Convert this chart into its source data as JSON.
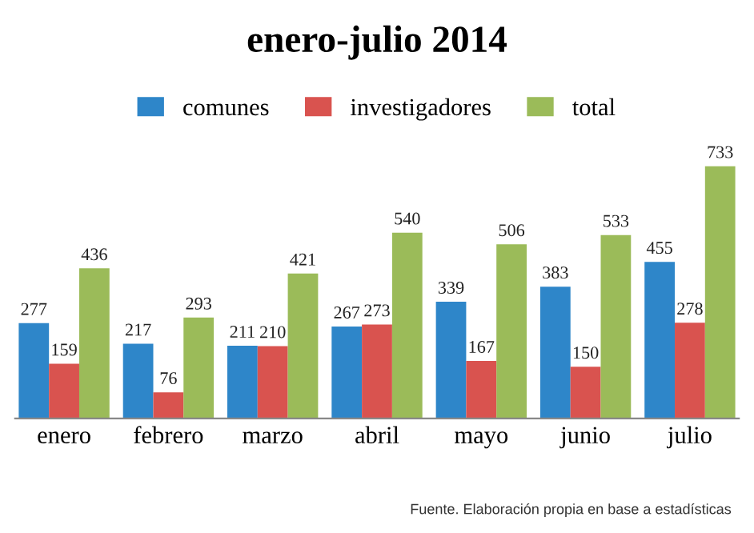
{
  "chart_data": {
    "type": "bar",
    "title": "enero-julio 2014",
    "categories": [
      "enero",
      "febrero",
      "marzo",
      "abril",
      "mayo",
      "junio",
      "julio"
    ],
    "series": [
      {
        "name": "comunes",
        "color": "#2e86c9",
        "values": [
          277,
          217,
          211,
          267,
          339,
          383,
          455
        ]
      },
      {
        "name": "investigadores",
        "color": "#d9534f",
        "values": [
          159,
          76,
          210,
          273,
          167,
          150,
          278
        ]
      },
      {
        "name": "total",
        "color": "#9bbb59",
        "values": [
          436,
          293,
          421,
          540,
          506,
          533,
          733
        ]
      }
    ],
    "data_labels": true,
    "legend": "top",
    "grid": false,
    "tick_labels": "x",
    "annotations": [
      "Fuente. Elaboración propia en base a estadísticas"
    ]
  }
}
